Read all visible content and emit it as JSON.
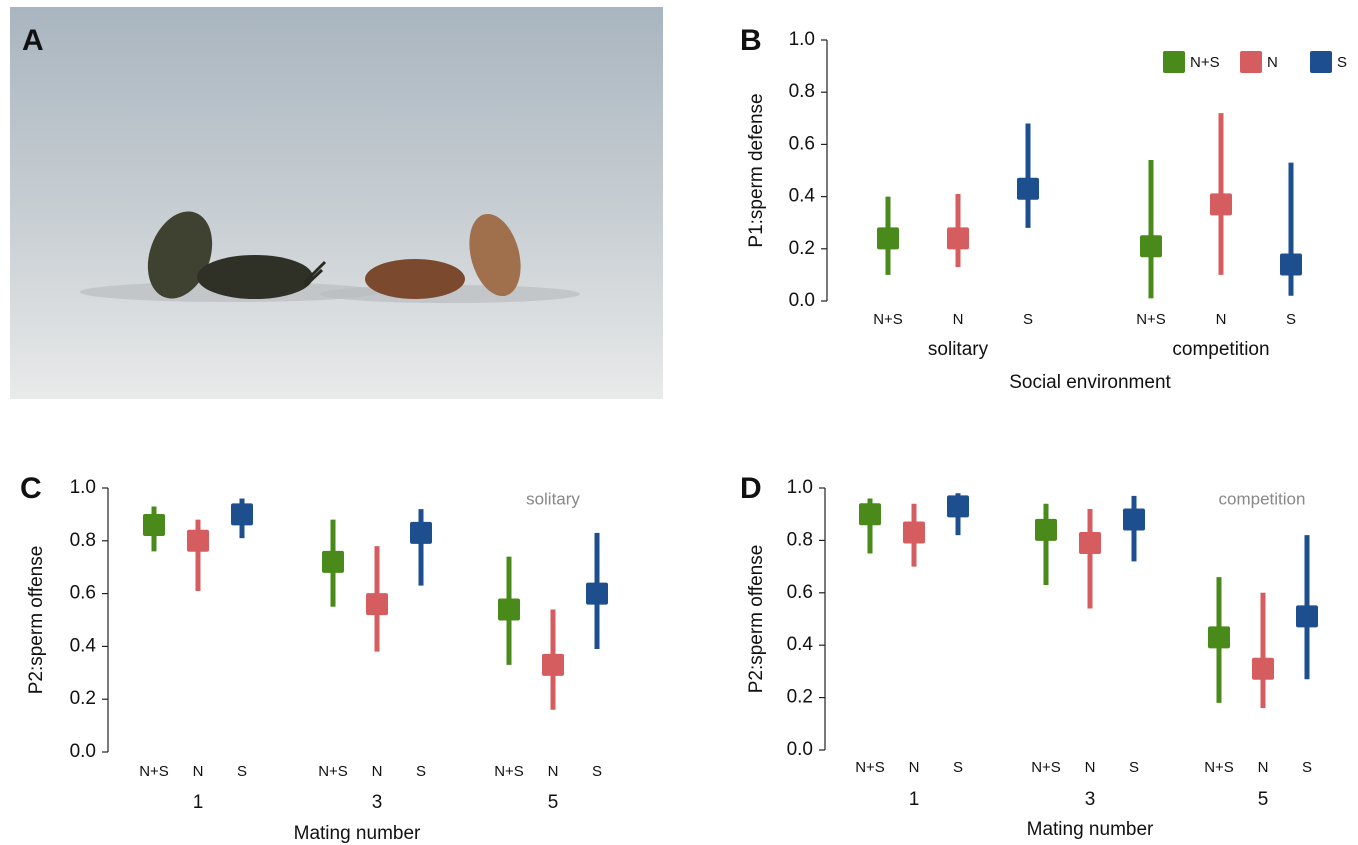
{
  "photo": {
    "label": "A"
  },
  "chart_data": [
    {
      "type": "interval",
      "label": "B",
      "ylabel": "P1:sperm defense",
      "xlabel": "Social environment",
      "groups": [
        "solitary",
        "competition"
      ],
      "legend": "top-right",
      "ylim": [
        0,
        1
      ],
      "yticks": [
        {
          "value": 0,
          "label": "0.0"
        },
        0.2,
        0.4,
        0.6,
        0.8,
        {
          "value": 1,
          "label": "1.0"
        }
      ],
      "series": [
        {
          "name": "N+S",
          "color": "#4a8a1b",
          "values": [
            0.24,
            0.21
          ],
          "lower": [
            0.1,
            0.01
          ],
          "upper": [
            0.4,
            0.54
          ]
        },
        {
          "name": "N",
          "color": "#d65d5f",
          "values": [
            0.24,
            0.37
          ],
          "lower": [
            0.13,
            0.1
          ],
          "upper": [
            0.41,
            0.72
          ]
        },
        {
          "name": "S",
          "color": "#1d4f8f",
          "values": [
            0.43,
            0.14
          ],
          "lower": [
            0.28,
            0.02
          ],
          "upper": [
            0.68,
            0.53
          ]
        }
      ]
    },
    {
      "type": "interval",
      "label": "C",
      "ylabel": "P2:sperm offense",
      "xlabel": "Mating number",
      "annotation": "solitary",
      "groups": [
        "1",
        "3",
        "5"
      ],
      "ylim": [
        0,
        1
      ],
      "yticks": [
        {
          "value": 0,
          "label": "0.0"
        },
        0.2,
        0.4,
        0.6,
        0.8,
        {
          "value": 1,
          "label": "1.0"
        }
      ],
      "series": [
        {
          "name": "N+S",
          "color": "#4a8a1b",
          "values": [
            0.86,
            0.72,
            0.54
          ],
          "lower": [
            0.76,
            0.55,
            0.33
          ],
          "upper": [
            0.93,
            0.88,
            0.74
          ]
        },
        {
          "name": "N",
          "color": "#d65d5f",
          "values": [
            0.8,
            0.56,
            0.33
          ],
          "lower": [
            0.61,
            0.38,
            0.16
          ],
          "upper": [
            0.88,
            0.78,
            0.54
          ]
        },
        {
          "name": "S",
          "color": "#1d4f8f",
          "values": [
            0.9,
            0.83,
            0.6
          ],
          "lower": [
            0.81,
            0.63,
            0.39
          ],
          "upper": [
            0.96,
            0.92,
            0.83
          ]
        }
      ]
    },
    {
      "type": "interval",
      "label": "D",
      "ylabel": "P2:sperm offense",
      "xlabel": "Mating number",
      "annotation": "competition",
      "groups": [
        "1",
        "3",
        "5"
      ],
      "ylim": [
        0,
        1
      ],
      "yticks": [
        {
          "value": 0,
          "label": "0.0"
        },
        0.2,
        0.4,
        0.6,
        0.8,
        {
          "value": 1,
          "label": "1.0"
        }
      ],
      "series": [
        {
          "name": "N+S",
          "color": "#4a8a1b",
          "values": [
            0.9,
            0.84,
            0.43
          ],
          "lower": [
            0.75,
            0.63,
            0.18
          ],
          "upper": [
            0.96,
            0.94,
            0.66
          ]
        },
        {
          "name": "N",
          "color": "#d65d5f",
          "values": [
            0.83,
            0.79,
            0.31
          ],
          "lower": [
            0.7,
            0.54,
            0.16
          ],
          "upper": [
            0.94,
            0.92,
            0.6
          ]
        },
        {
          "name": "S",
          "color": "#1d4f8f",
          "values": [
            0.93,
            0.88,
            0.51
          ],
          "lower": [
            0.82,
            0.72,
            0.27
          ],
          "upper": [
            0.98,
            0.97,
            0.82
          ]
        }
      ]
    }
  ]
}
